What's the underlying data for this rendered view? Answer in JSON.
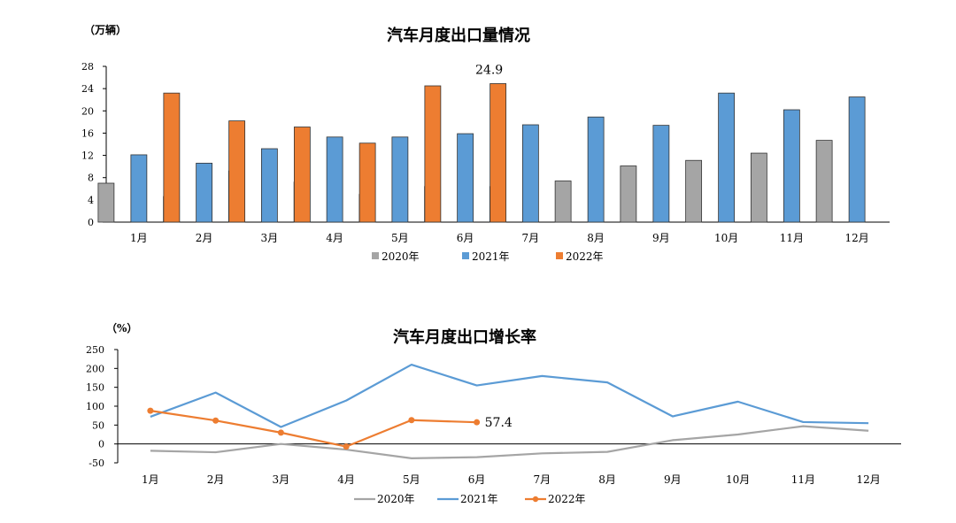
{
  "charts": {
    "bar": {
      "title": "汽车月度出口量情况",
      "unit": "（万辆）"
    },
    "line": {
      "title": "汽车月度出口增长率",
      "unit": "（%）"
    }
  },
  "colors": {
    "2020年": "#a5a5a5",
    "2021年": "#5b9bd5",
    "2022年": "#ed7d31"
  },
  "chart_data": [
    {
      "type": "bar",
      "title": "汽车月度出口量情况",
      "ylabel": "（万辆）",
      "categories": [
        "1月",
        "2月",
        "3月",
        "4月",
        "5月",
        "6月",
        "7月",
        "8月",
        "9月",
        "10月",
        "11月",
        "12月"
      ],
      "ylim": [
        0,
        28
      ],
      "yticks": [
        0,
        4,
        8,
        12,
        16,
        20,
        24,
        28
      ],
      "grid": false,
      "legend": "bottom",
      "series": [
        {
          "name": "2020年",
          "values": [
            7.0,
            4.6,
            9.2,
            7.2,
            5.0,
            6.4,
            6.4,
            7.4,
            10.1,
            11.1,
            12.4,
            14.7
          ]
        },
        {
          "name": "2021年",
          "values": [
            12.1,
            10.6,
            13.2,
            15.3,
            15.3,
            15.9,
            17.5,
            18.9,
            17.4,
            23.2,
            20.2,
            22.5
          ]
        },
        {
          "name": "2022年",
          "values": [
            23.2,
            18.2,
            17.1,
            14.2,
            24.5,
            24.9,
            null,
            null,
            null,
            null,
            null,
            null
          ]
        }
      ],
      "annotations": [
        {
          "series": "2022年",
          "category": "6月",
          "label": "24.9"
        }
      ]
    },
    {
      "type": "line",
      "title": "汽车月度出口增长率",
      "ylabel": "（%）",
      "categories": [
        "1月",
        "2月",
        "3月",
        "4月",
        "5月",
        "6月",
        "7月",
        "8月",
        "9月",
        "10月",
        "11月",
        "12月"
      ],
      "ylim": [
        -50,
        250
      ],
      "yticks": [
        -50,
        0,
        50,
        100,
        150,
        200,
        250
      ],
      "grid": false,
      "legend": "bottom",
      "series": [
        {
          "name": "2020年",
          "values": [
            -18,
            -22,
            0,
            -15,
            -38,
            -35,
            -25,
            -21,
            10,
            25,
            47,
            35
          ]
        },
        {
          "name": "2021年",
          "values": [
            72,
            136,
            45,
            115,
            210,
            155,
            180,
            163,
            73,
            112,
            58,
            55
          ]
        },
        {
          "name": "2022年",
          "values": [
            88,
            62,
            30,
            -7,
            63,
            57.4,
            null,
            null,
            null,
            null,
            null,
            null
          ]
        }
      ],
      "annotations": [
        {
          "series": "2022年",
          "category": "6月",
          "label": "57.4"
        }
      ]
    }
  ]
}
